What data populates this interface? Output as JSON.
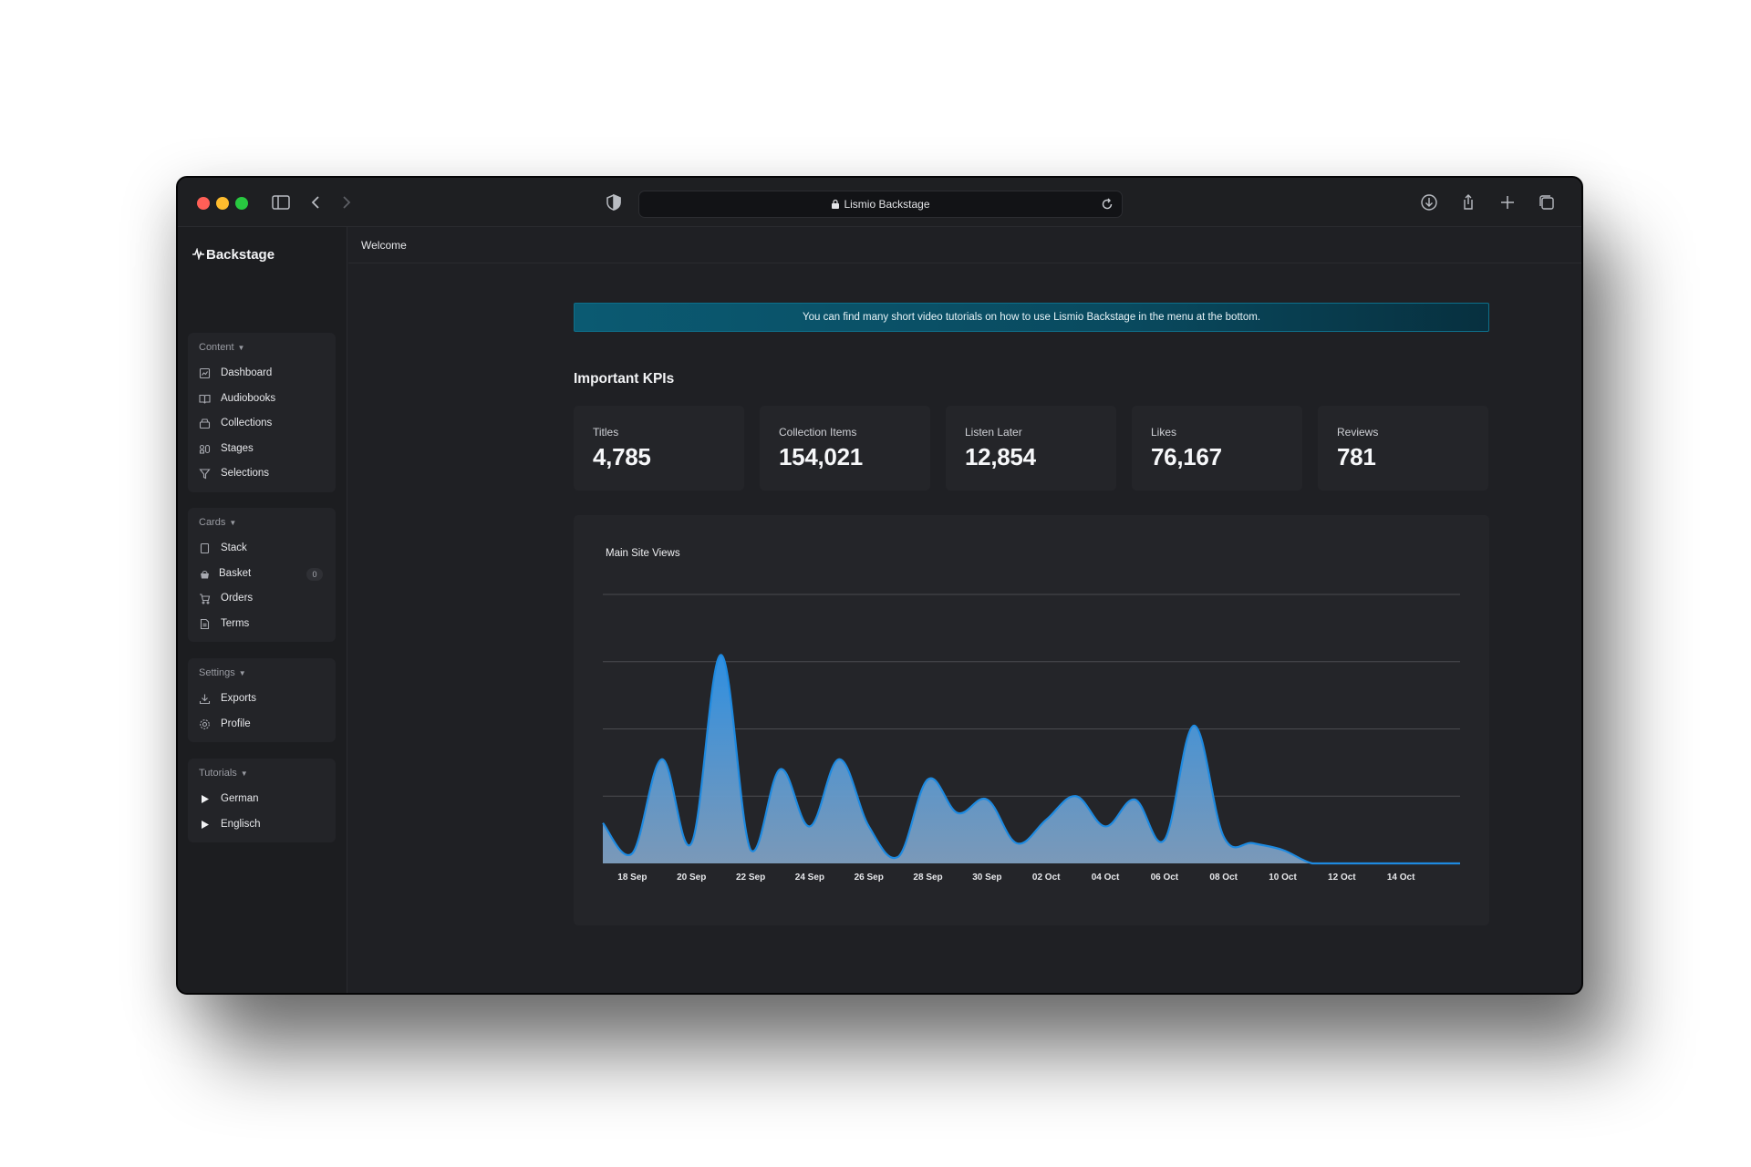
{
  "browser": {
    "url_title": "Lismio Backstage"
  },
  "sidebar": {
    "brand": "Backstage",
    "groups": [
      {
        "title": "Content",
        "items": [
          {
            "label": "Dashboard",
            "icon": "dashboard-icon"
          },
          {
            "label": "Audiobooks",
            "icon": "book-icon"
          },
          {
            "label": "Collections",
            "icon": "collection-icon"
          },
          {
            "label": "Stages",
            "icon": "stages-icon"
          },
          {
            "label": "Selections",
            "icon": "filter-icon"
          }
        ]
      },
      {
        "title": "Cards",
        "items": [
          {
            "label": "Stack",
            "icon": "card-icon"
          },
          {
            "label": "Basket",
            "icon": "basket-icon",
            "badge": "0"
          },
          {
            "label": "Orders",
            "icon": "cart-icon"
          },
          {
            "label": "Terms",
            "icon": "document-icon"
          }
        ]
      },
      {
        "title": "Settings",
        "items": [
          {
            "label": "Exports",
            "icon": "download-icon"
          },
          {
            "label": "Profile",
            "icon": "gear-icon"
          }
        ]
      },
      {
        "title": "Tutorials",
        "items": [
          {
            "label": "German",
            "icon": "play-icon"
          },
          {
            "label": "Englisch",
            "icon": "play-icon"
          }
        ]
      }
    ]
  },
  "header": {
    "breadcrumb": "Welcome"
  },
  "main": {
    "banner": "You can find many short video tutorials on how to use Lismio Backstage in the menu at the bottom.",
    "kpi_section_title": "Important KPIs",
    "kpis": [
      {
        "label": "Titles",
        "value": "4,785"
      },
      {
        "label": "Collection Items",
        "value": "154,021"
      },
      {
        "label": "Listen Later",
        "value": "12,854"
      },
      {
        "label": "Likes",
        "value": "76,167"
      },
      {
        "label": "Reviews",
        "value": "781"
      }
    ],
    "chart_title": "Main Site Views"
  },
  "colors": {
    "accent": "#1e8ae0",
    "area_top": "#2f8fe0",
    "area_bottom": "#7f9fc0"
  },
  "chart_data": {
    "type": "area",
    "title": "Main Site Views",
    "xlabel": "",
    "ylabel": "",
    "ylim": [
      0,
      4
    ],
    "grid": true,
    "x": [
      "17 Sep",
      "18 Sep",
      "19 Sep",
      "20 Sep",
      "21 Sep",
      "22 Sep",
      "23 Sep",
      "24 Sep",
      "25 Sep",
      "26 Sep",
      "27 Sep",
      "28 Sep",
      "29 Sep",
      "30 Sep",
      "01 Oct",
      "02 Oct",
      "03 Oct",
      "04 Oct",
      "05 Oct",
      "06 Oct",
      "07 Oct",
      "08 Oct",
      "09 Oct",
      "10 Oct",
      "11 Oct",
      "12 Oct",
      "13 Oct",
      "14 Oct",
      "15 Oct",
      "16 Oct"
    ],
    "tick_labels": [
      "18 Sep",
      "20 Sep",
      "22 Sep",
      "24 Sep",
      "26 Sep",
      "28 Sep",
      "30 Sep",
      "02 Oct",
      "04 Oct",
      "06 Oct",
      "08 Oct",
      "10 Oct",
      "12 Oct",
      "14 Oct"
    ],
    "series": [
      {
        "values": [
          0.6,
          0.15,
          1.55,
          0.3,
          3.1,
          0.2,
          1.4,
          0.55,
          1.55,
          0.55,
          0.1,
          1.25,
          0.75,
          0.95,
          0.3,
          0.65,
          1.0,
          0.55,
          0.95,
          0.35,
          2.05,
          0.4,
          0.3,
          0.2,
          0.0,
          0.0,
          0.0,
          0.0,
          0.0,
          0.0
        ]
      }
    ]
  }
}
